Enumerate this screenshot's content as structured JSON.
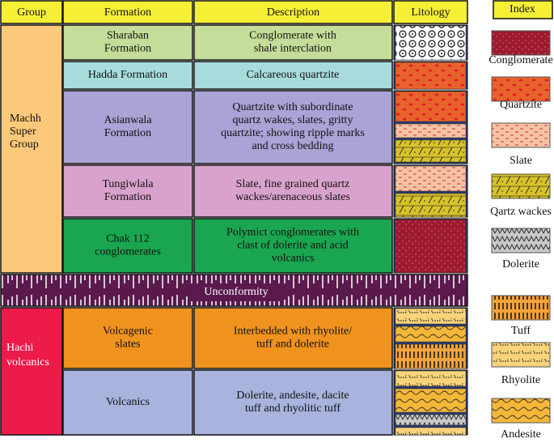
{
  "header": {
    "group": "Group",
    "formation": "Formation",
    "description": "Description",
    "litology": "Litology",
    "index": "Index"
  },
  "groups": [
    {
      "lines": [
        "Machh",
        "Super",
        "Group"
      ]
    },
    {
      "lines": [
        "Hachi",
        "volcanics"
      ]
    }
  ],
  "rows": [
    {
      "formation": [
        "Sharaban",
        "Formation"
      ],
      "description": [
        "Conglomerate with",
        "shale interclation"
      ]
    },
    {
      "formation": [
        "Hadda Formation"
      ],
      "description": [
        "Calcareous quartzite"
      ]
    },
    {
      "formation": [
        "Asianwala",
        "Formation"
      ],
      "description": [
        "Quartzite with subordinate",
        "quartz wakes, slates, gritty",
        "quartzite; showing ripple marks",
        "and cross bedding"
      ]
    },
    {
      "formation": [
        "Tungiwlala",
        "Formation"
      ],
      "description": [
        "Slate, fine grained quartz",
        "wackes/arenaceous slates"
      ]
    },
    {
      "formation": [
        "Chak 112",
        "conglomerates"
      ],
      "description": [
        "Polymict conglomerates with",
        "clast of dolerite and acid",
        "volcanics"
      ]
    },
    {
      "formation": [
        "Volcagenic",
        "slates"
      ],
      "description": [
        "Interbedded with rhyolite/",
        "tuff and dolerite"
      ]
    },
    {
      "formation": [
        "Volcanics"
      ],
      "description": [
        "Dolerite, andesite, dacite",
        "tuff and rhyolitic tuff"
      ]
    }
  ],
  "unconformity": "Unconformity",
  "index": [
    "Conglomerate",
    "Quartzite",
    "Slate",
    "Qartz wackes",
    "Dolerite",
    "Tuff",
    "Rhyolite",
    "Andesite"
  ]
}
